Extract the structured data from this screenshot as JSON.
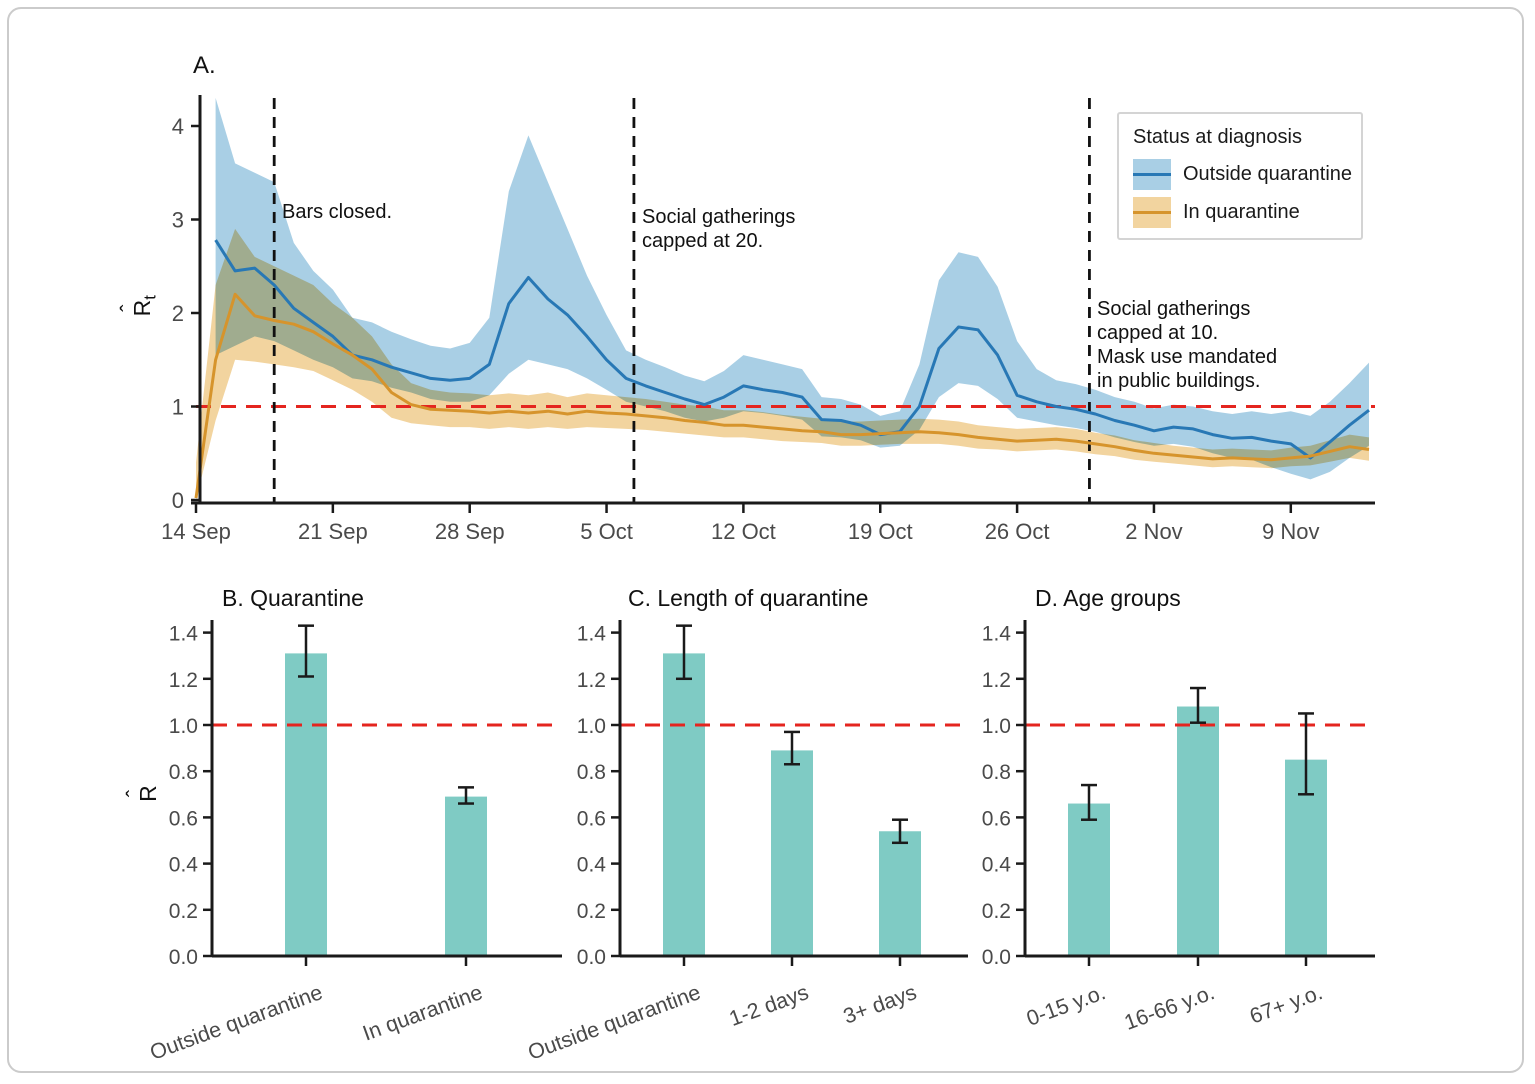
{
  "figure": {
    "background": "#ffffff",
    "border_color": "#cbcbcb"
  },
  "colors": {
    "blue_line": "#2878b5",
    "blue_band": "#a9cfe5",
    "orange_line": "#d6942c",
    "orange_band": "#f2d49f",
    "teal_bar": "#7fcbc4",
    "red_dashed": "#e4251f",
    "axis": "#1a1a1a",
    "tick_text": "#4a4a4a",
    "event_line": "#111111"
  },
  "labels": {
    "r": "R",
    "hat": "ˆ",
    "t_sub": "t"
  },
  "legend": {
    "title": "Status at diagnosis",
    "entries": [
      {
        "label": "Outside quarantine",
        "band": "#a9cfe5",
        "line": "#2878b5"
      },
      {
        "label": "In quarantine",
        "band": "#f2d49f",
        "line": "#d6942c"
      }
    ]
  },
  "chart_data": [
    {
      "id": "panel_a",
      "type": "line",
      "title": "A.",
      "ylabel": "R_t estimate (R hat, subscript t)",
      "ylim": [
        0,
        4.3
      ],
      "reference_line": 1.0,
      "x_ticks": [
        {
          "day": 0,
          "label": "14 Sep"
        },
        {
          "day": 7,
          "label": "21 Sep"
        },
        {
          "day": 14,
          "label": "28 Sep"
        },
        {
          "day": 21,
          "label": "5 Oct"
        },
        {
          "day": 28,
          "label": "12 Oct"
        },
        {
          "day": 35,
          "label": "19 Oct"
        },
        {
          "day": 42,
          "label": "26 Oct"
        },
        {
          "day": 49,
          "label": "2 Nov"
        },
        {
          "day": 56,
          "label": "9 Nov"
        }
      ],
      "y_ticks": [
        {
          "v": 0,
          "label": "0"
        },
        {
          "v": 1,
          "label": "1"
        },
        {
          "v": 2,
          "label": "2"
        },
        {
          "v": 3,
          "label": "3"
        },
        {
          "v": 4,
          "label": "4"
        }
      ],
      "events": [
        {
          "day": 4,
          "text": "Bars closed."
        },
        {
          "day": 22.4,
          "text": "Social gatherings\ncapped at 20."
        },
        {
          "day": 45.7,
          "text": "Social gatherings\ncapped at 10.\nMask use mandated\nin public buildings."
        }
      ],
      "series": [
        {
          "name": "Outside quarantine",
          "line_color": "#2878b5",
          "band_color": "#a9cfe5",
          "start_day": 1,
          "step_days": 1,
          "values": [
            2.78,
            2.45,
            2.48,
            2.3,
            2.05,
            1.9,
            1.75,
            1.55,
            1.5,
            1.42,
            1.36,
            1.3,
            1.28,
            1.3,
            1.45,
            2.1,
            2.38,
            2.15,
            1.98,
            1.75,
            1.5,
            1.3,
            1.22,
            1.15,
            1.08,
            1.02,
            1.1,
            1.22,
            1.18,
            1.15,
            1.1,
            0.86,
            0.85,
            0.8,
            0.7,
            0.73,
            1.0,
            1.62,
            1.85,
            1.82,
            1.55,
            1.12,
            1.05,
            1.0,
            0.97,
            0.92,
            0.85,
            0.8,
            0.74,
            0.78,
            0.76,
            0.7,
            0.66,
            0.67,
            0.63,
            0.6,
            0.45,
            0.62,
            0.8,
            0.96
          ],
          "lower": [
            1.55,
            1.65,
            1.75,
            1.7,
            1.6,
            1.5,
            1.42,
            1.3,
            1.27,
            1.2,
            1.15,
            1.08,
            1.05,
            1.05,
            1.12,
            1.35,
            1.5,
            1.45,
            1.4,
            1.3,
            1.18,
            1.05,
            1.0,
            0.95,
            0.88,
            0.84,
            0.88,
            0.95,
            0.93,
            0.9,
            0.86,
            0.68,
            0.67,
            0.64,
            0.56,
            0.58,
            0.75,
            1.1,
            1.25,
            1.22,
            1.08,
            0.88,
            0.84,
            0.8,
            0.77,
            0.73,
            0.67,
            0.62,
            0.58,
            0.6,
            0.57,
            0.5,
            0.45,
            0.43,
            0.35,
            0.28,
            0.22,
            0.3,
            0.45,
            0.58
          ],
          "upper": [
            4.3,
            3.6,
            3.5,
            3.4,
            2.75,
            2.45,
            2.25,
            1.95,
            1.9,
            1.8,
            1.72,
            1.65,
            1.62,
            1.68,
            1.95,
            3.3,
            3.9,
            3.4,
            2.9,
            2.4,
            1.98,
            1.6,
            1.5,
            1.42,
            1.33,
            1.27,
            1.38,
            1.55,
            1.5,
            1.45,
            1.4,
            1.1,
            1.08,
            1.02,
            0.9,
            0.95,
            1.45,
            2.35,
            2.65,
            2.6,
            2.28,
            1.7,
            1.4,
            1.28,
            1.24,
            1.18,
            1.1,
            1.05,
            0.98,
            1.02,
            1.0,
            0.95,
            0.92,
            0.95,
            0.92,
            0.95,
            0.9,
            1.05,
            1.25,
            1.47
          ]
        },
        {
          "name": "In quarantine",
          "line_color": "#d6942c",
          "band_color": "#f2d49f",
          "start_day": 0,
          "step_days": 1,
          "values": [
            0.02,
            1.5,
            2.2,
            1.97,
            1.92,
            1.88,
            1.8,
            1.67,
            1.55,
            1.4,
            1.15,
            1.02,
            0.97,
            0.96,
            0.95,
            0.93,
            0.95,
            0.93,
            0.95,
            0.92,
            0.95,
            0.93,
            0.92,
            0.9,
            0.88,
            0.85,
            0.83,
            0.8,
            0.8,
            0.78,
            0.76,
            0.74,
            0.73,
            0.7,
            0.7,
            0.71,
            0.72,
            0.73,
            0.72,
            0.7,
            0.67,
            0.65,
            0.63,
            0.64,
            0.65,
            0.63,
            0.6,
            0.57,
            0.53,
            0.5,
            0.48,
            0.46,
            0.44,
            0.45,
            0.44,
            0.43,
            0.45,
            0.47,
            0.52,
            0.57,
            0.54
          ],
          "lower": [
            0.0,
            0.85,
            1.5,
            1.48,
            1.45,
            1.42,
            1.38,
            1.28,
            1.18,
            1.05,
            0.88,
            0.82,
            0.8,
            0.78,
            0.78,
            0.76,
            0.78,
            0.76,
            0.78,
            0.76,
            0.78,
            0.77,
            0.76,
            0.75,
            0.73,
            0.71,
            0.69,
            0.67,
            0.67,
            0.65,
            0.63,
            0.62,
            0.61,
            0.58,
            0.58,
            0.59,
            0.6,
            0.6,
            0.6,
            0.58,
            0.55,
            0.54,
            0.52,
            0.53,
            0.54,
            0.52,
            0.49,
            0.47,
            0.43,
            0.41,
            0.39,
            0.37,
            0.35,
            0.36,
            0.35,
            0.34,
            0.36,
            0.37,
            0.41,
            0.45,
            0.42
          ],
          "upper": [
            0.4,
            2.3,
            2.9,
            2.6,
            2.5,
            2.4,
            2.3,
            2.1,
            1.95,
            1.75,
            1.45,
            1.25,
            1.18,
            1.15,
            1.14,
            1.12,
            1.14,
            1.12,
            1.15,
            1.1,
            1.14,
            1.12,
            1.1,
            1.08,
            1.05,
            1.02,
            1.0,
            0.96,
            0.96,
            0.94,
            0.91,
            0.89,
            0.87,
            0.84,
            0.84,
            0.85,
            0.86,
            0.87,
            0.86,
            0.84,
            0.8,
            0.78,
            0.76,
            0.77,
            0.78,
            0.76,
            0.72,
            0.69,
            0.64,
            0.61,
            0.58,
            0.56,
            0.54,
            0.55,
            0.54,
            0.53,
            0.56,
            0.58,
            0.64,
            0.7,
            0.67
          ]
        }
      ]
    },
    {
      "id": "panel_b",
      "type": "bar",
      "title": "B. Quarantine",
      "categories": [
        "Outside quarantine",
        "In quarantine"
      ],
      "values": [
        1.31,
        0.69
      ],
      "error_low": [
        1.21,
        0.66
      ],
      "error_high": [
        1.43,
        0.73
      ],
      "ylim": [
        0,
        1.45
      ],
      "reference_line": 1.0,
      "y_ticks": [
        "0.0",
        "0.2",
        "0.4",
        "0.6",
        "0.8",
        "1.0",
        "1.2",
        "1.4"
      ]
    },
    {
      "id": "panel_c",
      "type": "bar",
      "title": "C. Length of quarantine",
      "categories": [
        "Outside quarantine",
        "1-2 days",
        "3+ days"
      ],
      "values": [
        1.31,
        0.89,
        0.54
      ],
      "error_low": [
        1.2,
        0.83,
        0.49
      ],
      "error_high": [
        1.43,
        0.97,
        0.59
      ],
      "ylim": [
        0,
        1.45
      ],
      "reference_line": 1.0,
      "y_ticks": [
        "0.0",
        "0.2",
        "0.4",
        "0.6",
        "0.8",
        "1.0",
        "1.2",
        "1.4"
      ]
    },
    {
      "id": "panel_d",
      "type": "bar",
      "title": "D. Age groups",
      "categories": [
        "0-15 y.o.",
        "16-66 y.o.",
        "67+ y.o."
      ],
      "values": [
        0.66,
        1.08,
        0.85
      ],
      "error_low": [
        0.59,
        1.01,
        0.7
      ],
      "error_high": [
        0.74,
        1.16,
        1.05
      ],
      "ylim": [
        0,
        1.45
      ],
      "reference_line": 1.0,
      "y_ticks": [
        "0.0",
        "0.2",
        "0.4",
        "0.6",
        "0.8",
        "1.0",
        "1.2",
        "1.4"
      ]
    }
  ]
}
